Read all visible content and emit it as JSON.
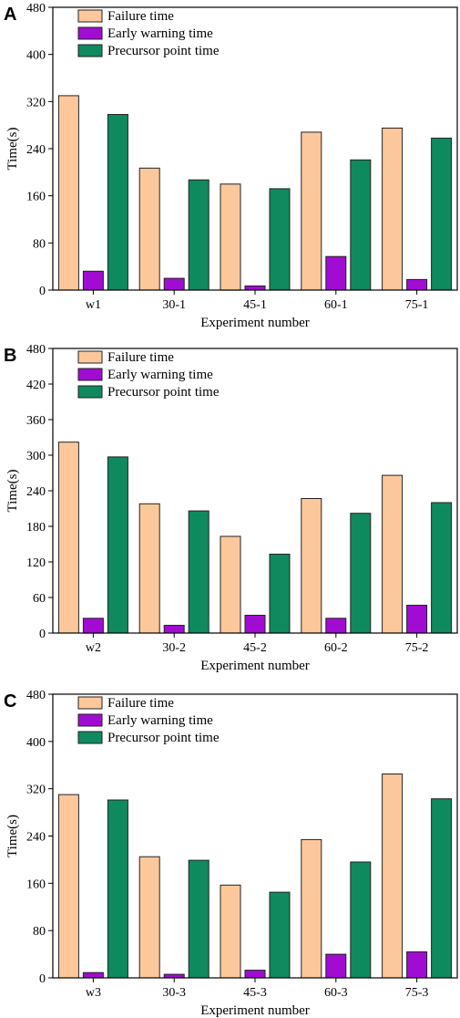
{
  "colors": {
    "failure": "#fcc89b",
    "warning": "#a10cd2",
    "precursor": "#0f8a5f",
    "edge": "#222222"
  },
  "chart_data": [
    {
      "type": "bar",
      "panel": "A",
      "categories": [
        "w1",
        "30-1",
        "45-1",
        "60-1",
        "75-1"
      ],
      "series": [
        {
          "name": "Failure time",
          "values": [
            330,
            207,
            180,
            268,
            275
          ]
        },
        {
          "name": "Early warning time",
          "values": [
            32,
            20,
            7,
            57,
            18
          ]
        },
        {
          "name": "Precursor point time",
          "values": [
            298,
            187,
            172,
            221,
            258
          ]
        }
      ],
      "xlabel": "Experiment number",
      "ylabel": "Time(s)",
      "ylim": [
        0,
        480
      ],
      "yticks": [
        0,
        80,
        160,
        240,
        320,
        400,
        480
      ],
      "legend": "top-left",
      "grid": false
    },
    {
      "type": "bar",
      "panel": "B",
      "categories": [
        "w2",
        "30-2",
        "45-2",
        "60-2",
        "75-2"
      ],
      "series": [
        {
          "name": "Failure time",
          "values": [
            322,
            218,
            163,
            227,
            266
          ]
        },
        {
          "name": "Early warning time",
          "values": [
            25,
            13,
            30,
            25,
            47
          ]
        },
        {
          "name": "Precursor point time",
          "values": [
            297,
            206,
            133,
            202,
            220
          ]
        }
      ],
      "xlabel": "Experiment number",
      "ylabel": "Time(s)",
      "ylim": [
        0,
        480
      ],
      "yticks": [
        0,
        60,
        120,
        180,
        240,
        300,
        360,
        420,
        480
      ],
      "legend": "top-left",
      "grid": false
    },
    {
      "type": "bar",
      "panel": "C",
      "categories": [
        "w3",
        "30-3",
        "45-3",
        "60-3",
        "75-3"
      ],
      "series": [
        {
          "name": "Failure time",
          "values": [
            310,
            205,
            157,
            234,
            345
          ]
        },
        {
          "name": "Early warning time",
          "values": [
            9,
            6,
            13,
            40,
            44
          ]
        },
        {
          "name": "Precursor point time",
          "values": [
            301,
            199,
            145,
            196,
            303
          ]
        }
      ],
      "xlabel": "Experiment number",
      "ylabel": "Time(s)",
      "ylim": [
        0,
        480
      ],
      "yticks": [
        0,
        80,
        160,
        240,
        320,
        400,
        480
      ],
      "legend": "top-left",
      "grid": false
    }
  ]
}
